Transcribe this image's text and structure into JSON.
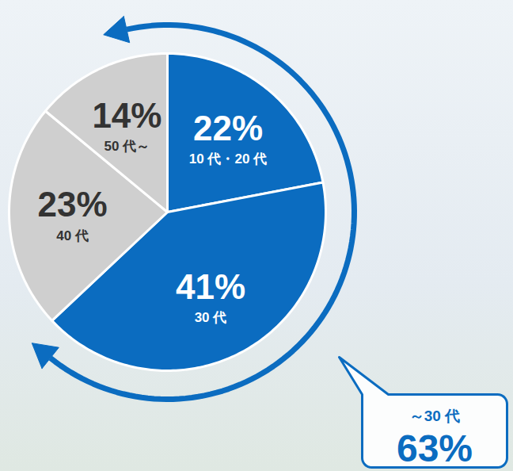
{
  "chart_data": {
    "type": "pie",
    "categories": [
      "10 代・20 代",
      "30 代",
      "40 代",
      "50 代～"
    ],
    "values": [
      22,
      41,
      23,
      14
    ],
    "value_labels": [
      "22%",
      "41%",
      "23%",
      "14%"
    ],
    "colors": [
      "#0b6cc0",
      "#0b6cc0",
      "#cfcfcf",
      "#cfcfcf"
    ],
    "data_labels": true,
    "annotations": [
      {
        "text": "～30 代",
        "value": 63,
        "value_label": "63%"
      }
    ]
  }
}
